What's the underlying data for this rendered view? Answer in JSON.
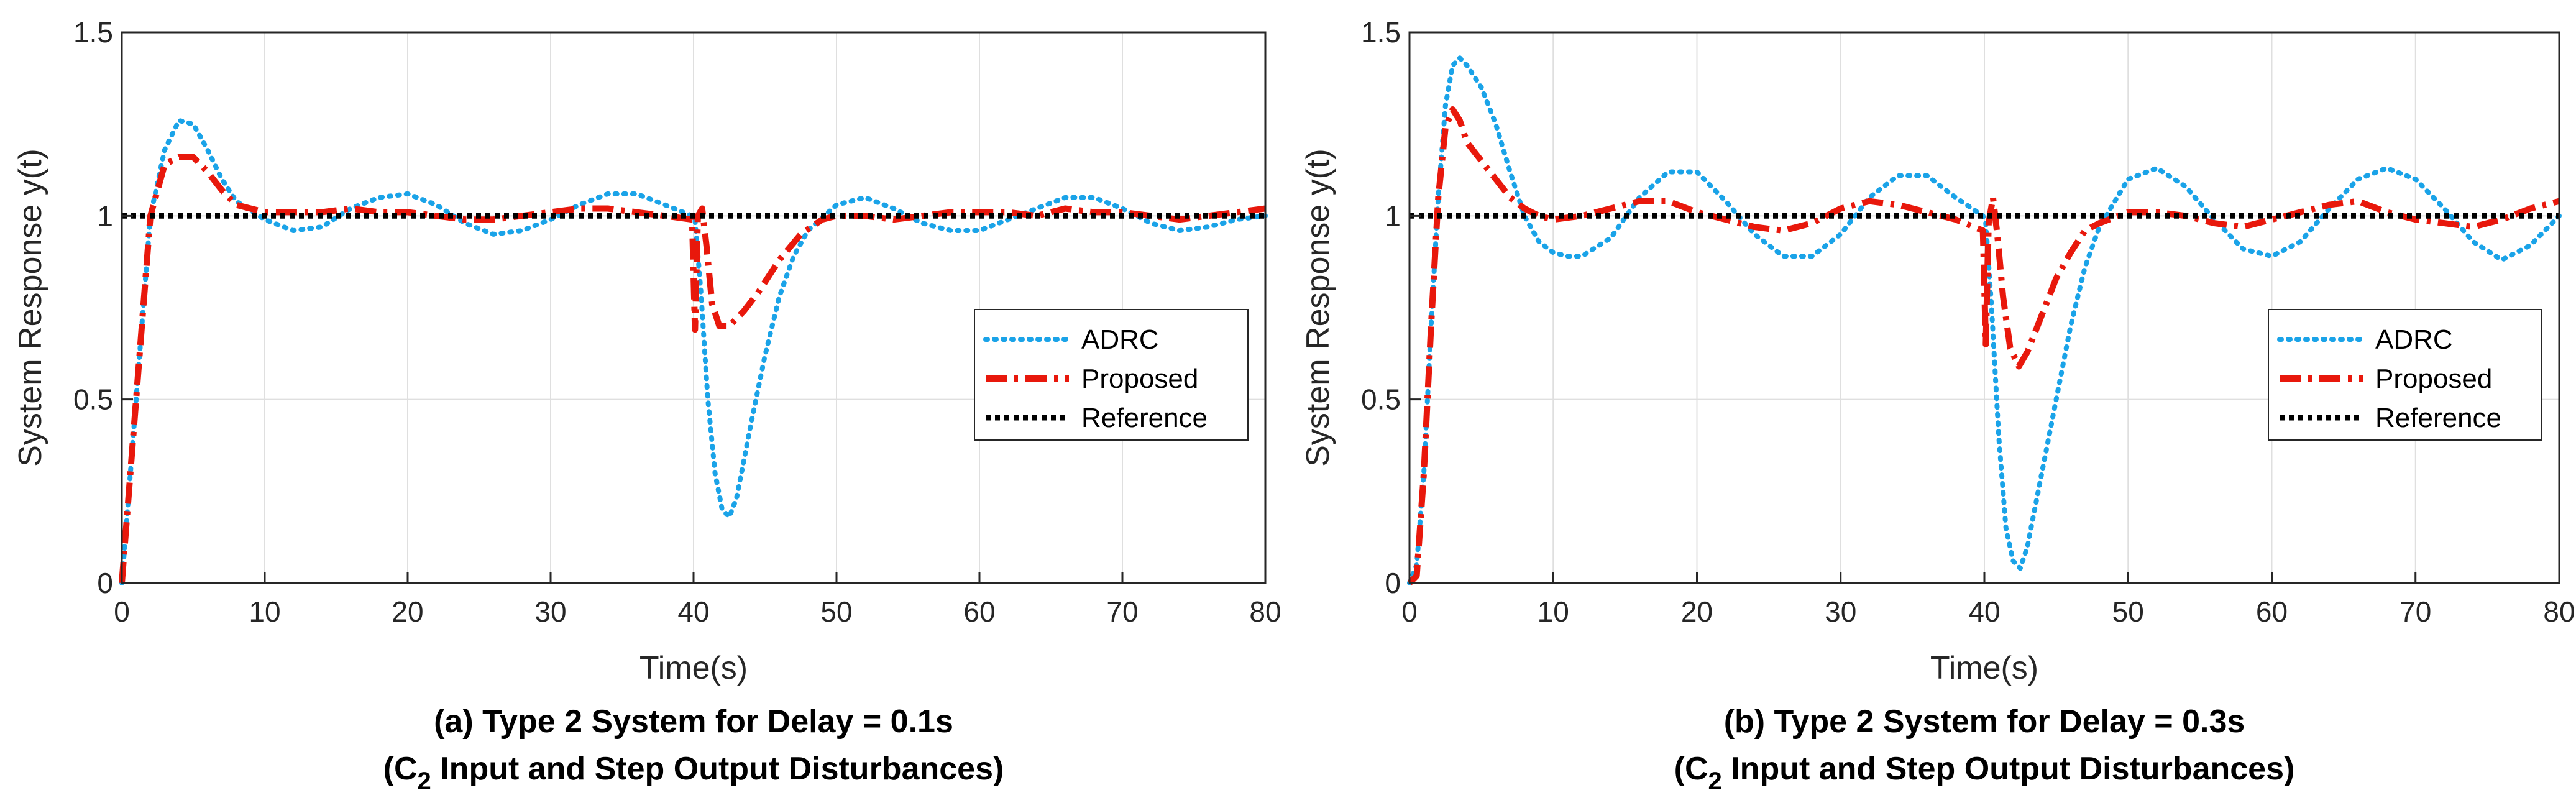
{
  "chart_data": [
    {
      "type": "line",
      "caption_line1": "(a) Type 2 System for Delay = 0.1s",
      "caption_line2_pre": "(C",
      "caption_line2_sub": "2",
      "caption_line2_post": " Input and Step Output Disturbances)",
      "xlabel": "Time(s)",
      "ylabel": "System Response y(t)",
      "xlim": [
        0,
        80
      ],
      "ylim": [
        0,
        1.5
      ],
      "xticks": [
        "0",
        "10",
        "20",
        "30",
        "40",
        "50",
        "60",
        "70",
        "80"
      ],
      "yticks": [
        "0",
        "0.5",
        "1",
        "1.5"
      ],
      "grid": true,
      "legend_position": "center-right",
      "series": [
        {
          "name": "ADRC",
          "color": "#1aa3e8",
          "style": "dotted",
          "x": [
            0,
            1,
            2,
            3,
            4,
            5,
            6,
            7,
            8,
            10,
            12,
            14,
            16,
            18,
            20,
            22,
            24,
            26,
            28,
            30,
            32,
            34,
            36,
            38,
            39.9,
            40.1,
            40.5,
            41,
            41.5,
            42,
            42.5,
            43,
            44,
            45,
            46,
            47,
            48,
            50,
            52,
            54,
            56,
            58,
            60,
            62,
            64,
            66,
            68,
            70,
            72,
            74,
            76,
            78,
            80
          ],
          "y": [
            0,
            0.5,
            1.0,
            1.18,
            1.26,
            1.25,
            1.18,
            1.1,
            1.04,
            0.99,
            0.96,
            0.97,
            1.02,
            1.05,
            1.06,
            1.03,
            0.98,
            0.95,
            0.96,
            0.99,
            1.03,
            1.06,
            1.06,
            1.03,
            1.0,
            0.99,
            0.8,
            0.5,
            0.3,
            0.2,
            0.18,
            0.23,
            0.43,
            0.62,
            0.78,
            0.89,
            0.96,
            1.03,
            1.05,
            1.02,
            0.98,
            0.96,
            0.96,
            0.99,
            1.02,
            1.05,
            1.05,
            1.02,
            0.98,
            0.96,
            0.97,
            0.99,
            1.0
          ]
        },
        {
          "name": "Proposed",
          "color": "#e8180c",
          "style": "dashdot",
          "x": [
            0,
            1,
            2,
            3,
            4,
            5,
            6,
            7,
            8,
            10,
            12,
            14,
            16,
            18,
            20,
            22,
            24,
            26,
            28,
            30,
            32,
            34,
            36,
            38,
            39.9,
            40.1,
            40.3,
            40.6,
            40.9,
            41.3,
            41.8,
            42.5,
            43.5,
            44.5,
            46,
            47.5,
            49,
            50,
            52,
            54,
            56,
            58,
            60,
            62,
            64,
            66,
            68,
            70,
            72,
            74,
            76,
            78,
            80
          ],
          "y": [
            0,
            0.5,
            1.0,
            1.14,
            1.16,
            1.16,
            1.12,
            1.07,
            1.03,
            1.01,
            1.01,
            1.01,
            1.02,
            1.01,
            1.01,
            1.0,
            0.99,
            0.99,
            1.0,
            1.01,
            1.02,
            1.02,
            1.01,
            1.0,
            0.99,
            0.69,
            1.0,
            1.02,
            0.92,
            0.76,
            0.7,
            0.7,
            0.74,
            0.79,
            0.88,
            0.95,
            0.99,
            1.0,
            1.0,
            0.99,
            1.0,
            1.01,
            1.01,
            1.01,
            1.0,
            1.02,
            1.01,
            1.01,
            1.0,
            0.99,
            1.0,
            1.01,
            1.02
          ]
        },
        {
          "name": "Reference",
          "color": "#000000",
          "style": "dotted-heavy",
          "x": [
            0,
            80
          ],
          "y": [
            1,
            1
          ]
        }
      ]
    },
    {
      "type": "line",
      "caption_line1": "(b) Type 2 System for Delay = 0.3s",
      "caption_line2_pre": "(C",
      "caption_line2_sub": "2",
      "caption_line2_post": " Input and Step Output Disturbances)",
      "xlabel": "Time(s)",
      "ylabel": "System Response y(t)",
      "xlim": [
        0,
        80
      ],
      "ylim": [
        0,
        1.5
      ],
      "xticks": [
        "0",
        "10",
        "20",
        "30",
        "40",
        "50",
        "60",
        "70",
        "80"
      ],
      "yticks": [
        "0",
        "0.5",
        "1",
        "1.5"
      ],
      "grid": true,
      "legend_position": "center-right",
      "series": [
        {
          "name": "ADRC",
          "color": "#1aa3e8",
          "style": "dotted",
          "x": [
            0,
            0.5,
            1,
            1.5,
            2,
            2.5,
            3,
            3.5,
            4,
            5,
            6,
            7,
            8,
            9,
            10,
            11,
            12,
            14,
            16,
            18,
            20,
            22,
            24,
            26,
            28,
            30,
            32,
            34,
            36,
            38,
            39.9,
            40.1,
            40.5,
            41,
            41.5,
            42,
            42.5,
            43,
            44,
            45,
            46,
            47,
            48,
            50,
            52,
            54,
            56,
            58,
            60,
            62,
            64,
            66,
            68,
            70,
            72,
            74,
            76,
            78,
            80
          ],
          "y": [
            0,
            0.05,
            0.3,
            0.7,
            1.05,
            1.3,
            1.41,
            1.43,
            1.41,
            1.35,
            1.25,
            1.12,
            1.0,
            0.93,
            0.9,
            0.89,
            0.89,
            0.94,
            1.05,
            1.12,
            1.12,
            1.04,
            0.95,
            0.89,
            0.89,
            0.95,
            1.05,
            1.11,
            1.11,
            1.05,
            1.0,
            0.98,
            0.75,
            0.4,
            0.15,
            0.06,
            0.04,
            0.1,
            0.3,
            0.5,
            0.7,
            0.86,
            0.97,
            1.1,
            1.13,
            1.08,
            0.99,
            0.91,
            0.89,
            0.93,
            1.02,
            1.1,
            1.13,
            1.1,
            1.02,
            0.93,
            0.88,
            0.92,
            1.0
          ]
        },
        {
          "name": "Proposed",
          "color": "#e8180c",
          "style": "dashdot",
          "x": [
            0,
            0.5,
            1,
            1.5,
            2,
            2.5,
            3,
            3.5,
            4,
            5,
            6,
            7,
            8,
            9,
            10,
            12,
            14,
            16,
            18,
            20,
            22,
            24,
            26,
            28,
            30,
            32,
            34,
            36,
            38,
            39.9,
            40.1,
            40.3,
            40.6,
            40.9,
            41.3,
            41.8,
            42.4,
            43,
            44,
            45,
            46,
            47,
            48,
            50,
            52,
            54,
            56,
            58,
            60,
            62,
            64,
            66,
            68,
            70,
            72,
            74,
            76,
            78,
            80
          ],
          "y": [
            0,
            0.02,
            0.3,
            0.7,
            1.05,
            1.24,
            1.29,
            1.26,
            1.2,
            1.15,
            1.1,
            1.05,
            1.02,
            1.0,
            0.99,
            1.0,
            1.02,
            1.04,
            1.04,
            1.01,
            0.99,
            0.97,
            0.96,
            0.98,
            1.02,
            1.04,
            1.03,
            1.01,
            0.99,
            0.96,
            0.65,
            0.98,
            1.05,
            0.95,
            0.78,
            0.64,
            0.59,
            0.63,
            0.73,
            0.83,
            0.9,
            0.96,
            0.98,
            1.01,
            1.01,
            1.0,
            0.98,
            0.97,
            0.99,
            1.01,
            1.03,
            1.04,
            1.01,
            0.99,
            0.98,
            0.97,
            0.99,
            1.02,
            1.04
          ]
        },
        {
          "name": "Reference",
          "color": "#000000",
          "style": "dotted-heavy",
          "x": [
            0,
            80
          ],
          "y": [
            1,
            1
          ]
        }
      ]
    }
  ]
}
